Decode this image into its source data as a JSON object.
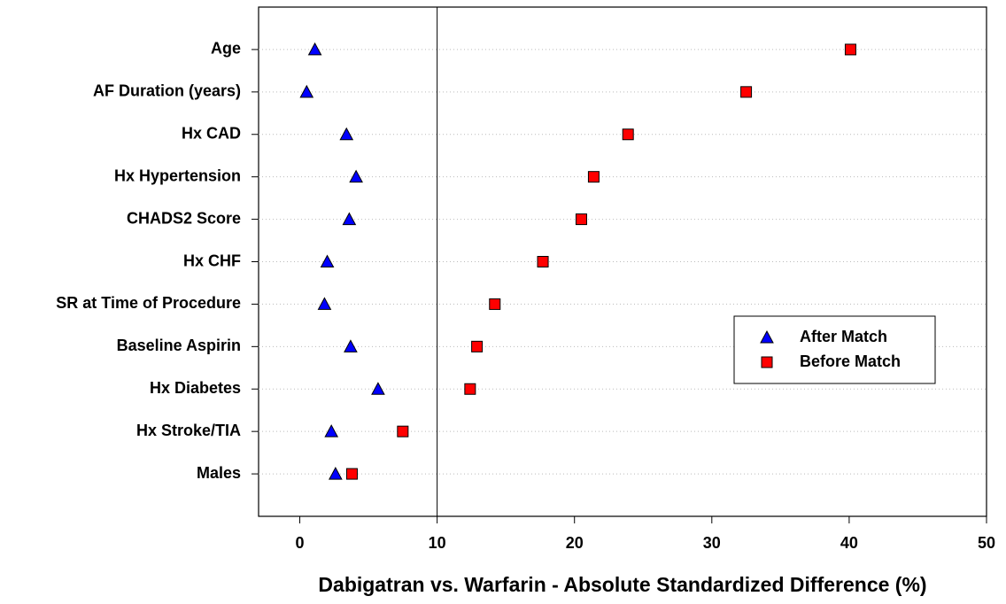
{
  "chart_data": {
    "type": "dot",
    "xlabel": "Dabigatran vs. Warfarin - Absolute Standardized Difference (%)",
    "categories": [
      "Age",
      "AF Duration (years)",
      "Hx CAD",
      "Hx Hypertension",
      "CHADS2 Score",
      "Hx CHF",
      "SR at Time of Procedure",
      "Baseline Aspirin",
      "Hx Diabetes",
      "Hx Stroke/TIA",
      "Males"
    ],
    "series": [
      {
        "name": "After Match",
        "color": "#0000ff",
        "marker": "triangle",
        "values": [
          1.1,
          0.5,
          3.4,
          4.1,
          3.6,
          2.0,
          1.8,
          3.7,
          5.7,
          2.3,
          2.6
        ]
      },
      {
        "name": "Before Match",
        "color": "#ff0000",
        "marker": "square",
        "values": [
          40.1,
          32.5,
          23.9,
          21.4,
          20.5,
          17.7,
          14.2,
          12.9,
          12.4,
          7.5,
          3.8
        ]
      }
    ],
    "xlim": [
      -3,
      50
    ],
    "xticks": [
      0,
      10,
      20,
      30,
      40,
      50
    ],
    "reference_line": 10,
    "grid": true,
    "legend": "right"
  }
}
